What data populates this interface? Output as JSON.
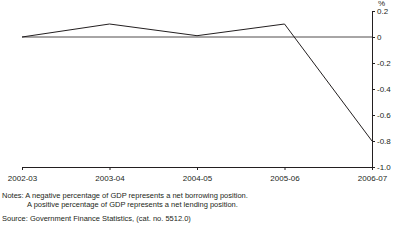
{
  "chart_data": {
    "type": "line",
    "categories": [
      "2002-03",
      "2003-04",
      "2004-05",
      "2005-06",
      "2006-07"
    ],
    "values": [
      0,
      0.1,
      0.01,
      0.1,
      -0.8
    ],
    "color": "#231f20",
    "ylabel": "%",
    "ylim": [
      -1,
      0.2
    ],
    "yticks": [
      0.2,
      0,
      -0.2,
      -0.4,
      -0.6,
      -0.8,
      {
        "value": -1,
        "label": "-1.0"
      }
    ],
    "grid": false,
    "notes": [
      "Notes: A negative percentage of GDP represents a net borrowing position.",
      "A positive percentage of GDP represents a net lending position."
    ],
    "source": "Source: Government Finance Statistics, (cat. no. 5512.0)"
  }
}
